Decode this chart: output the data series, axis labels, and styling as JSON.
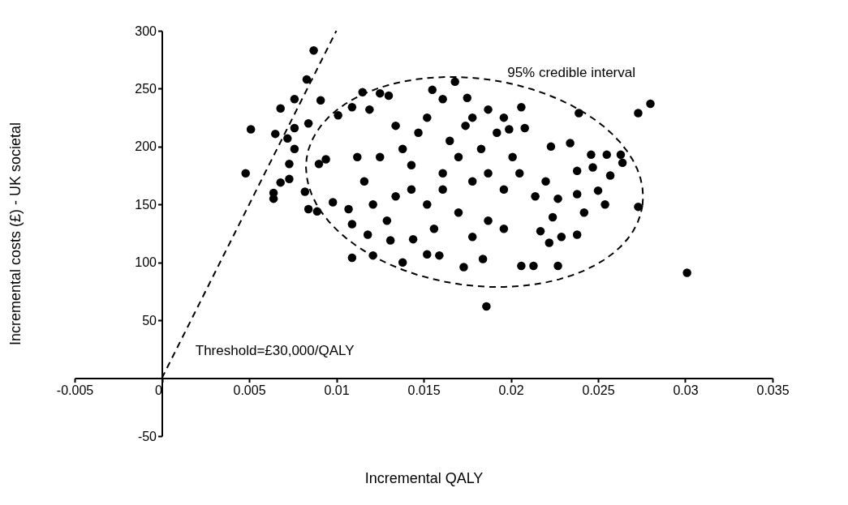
{
  "chart_data": {
    "type": "scatter",
    "xlabel": "Incremental QALY",
    "ylabel": "Incremental costs (£) - UK societal",
    "xlim": [
      -0.005,
      0.035
    ],
    "ylim": [
      -50,
      300
    ],
    "xticks": [
      -0.005,
      0,
      0.005,
      0.01,
      0.015,
      0.02,
      0.025,
      0.03,
      0.035
    ],
    "yticks": [
      -50,
      50,
      100,
      150,
      200,
      250,
      300
    ],
    "grid": false,
    "series": [
      {
        "marker": "circle",
        "color": "#000000",
        "x": [
          0.0087,
          0.0083,
          0.0076,
          0.0068,
          0.0051,
          0.0065,
          0.0048,
          0.0064,
          0.0064,
          0.0068,
          0.0073,
          0.0073,
          0.0076,
          0.0072,
          0.0076,
          0.0084,
          0.0091,
          0.0082,
          0.0084,
          0.0089,
          0.009,
          0.0094,
          0.0098,
          0.0101,
          0.0109,
          0.0115,
          0.0109,
          0.0109,
          0.0118,
          0.0121,
          0.0131,
          0.0138,
          0.0125,
          0.013,
          0.0119,
          0.0152,
          0.0159,
          0.0173,
          0.0168,
          0.0175,
          0.0161,
          0.0155,
          0.0107,
          0.0144,
          0.0206,
          0.0239,
          0.0273,
          0.028,
          0.0301,
          0.0186,
          0.0206,
          0.0213,
          0.0227,
          0.0222,
          0.0229,
          0.0238,
          0.0273,
          0.0254,
          0.0242,
          0.0238,
          0.025,
          0.0257,
          0.0247,
          0.0246,
          0.0255,
          0.0263,
          0.0264,
          0.0234,
          0.0223,
          0.0238,
          0.0224,
          0.0217,
          0.0184,
          0.0208,
          0.0199,
          0.0187,
          0.022,
          0.0227,
          0.0125,
          0.0143,
          0.0161,
          0.0178,
          0.0196,
          0.0134,
          0.0152,
          0.017,
          0.0187,
          0.0205,
          0.0116,
          0.0147,
          0.0165,
          0.0183,
          0.0201,
          0.0129,
          0.0156,
          0.0178,
          0.0196,
          0.0138,
          0.0174,
          0.0192,
          0.0121,
          0.0214,
          0.0161,
          0.0187,
          0.0112,
          0.0143,
          0.017,
          0.0152,
          0.0178,
          0.0196,
          0.0134
        ],
        "values": [
          283,
          258,
          241,
          233,
          215,
          211,
          177,
          155,
          160,
          169,
          172,
          185,
          198,
          207,
          216,
          220,
          240,
          161,
          146,
          144,
          185,
          189,
          152,
          227,
          234,
          247,
          133,
          104,
          124,
          106,
          119,
          100,
          246,
          244,
          232,
          107,
          106,
          96,
          256,
          242,
          241,
          249,
          146,
          120,
          234,
          229,
          229,
          237,
          91,
          62,
          97,
          97,
          97,
          117,
          122,
          124,
          148,
          150,
          143,
          159,
          162,
          175,
          182,
          193,
          193,
          193,
          186,
          203,
          200,
          179,
          139,
          127,
          103,
          216,
          215,
          232,
          170,
          155,
          191,
          184,
          177,
          170,
          163,
          157,
          150,
          143,
          136,
          177,
          170,
          212,
          205,
          198,
          191,
          136,
          129,
          122,
          129,
          198,
          218,
          212,
          150,
          157,
          163,
          177,
          191,
          163,
          191,
          225,
          225,
          225,
          218
        ]
      },
      {
        "type": "line",
        "line_style": "dashed",
        "color": "#000000",
        "x": [
          0,
          0.01
        ],
        "values": [
          0,
          300
        ]
      }
    ],
    "annotations": [
      "95% credible interval",
      "Threshold=£30,000/QALY"
    ]
  }
}
